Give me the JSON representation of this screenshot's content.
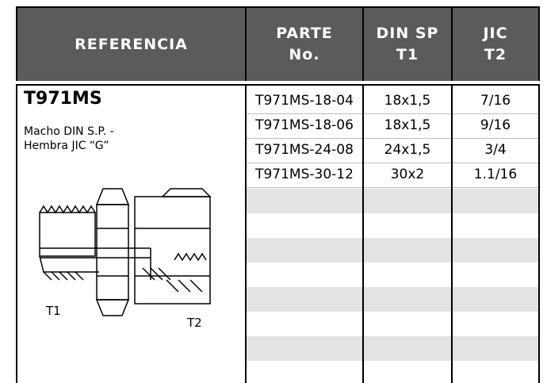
{
  "header": {
    "columns": [
      {
        "lines": [
          "REFERENCIA"
        ]
      },
      {
        "lines": [
          "PARTE",
          "No."
        ]
      },
      {
        "lines": [
          "DIN SP",
          "T1"
        ]
      },
      {
        "lines": [
          "JIC",
          "T2"
        ]
      }
    ]
  },
  "product": {
    "code": "T971MS",
    "description": [
      "Macho DIN S.P. -",
      "Hembra JIC “G”"
    ],
    "drawing_labels": [
      "T1",
      "T2"
    ]
  },
  "table": {
    "rows": [
      [
        "T971MS-18-04",
        "18x1,5",
        "7/16"
      ],
      [
        "T971MS-18-06",
        "18x1,5",
        "9/16"
      ],
      [
        "T971MS-24-08",
        "24x1,5",
        "3/4"
      ],
      [
        "T971MS-30-12",
        "30x2",
        "1.1/16"
      ]
    ]
  }
}
